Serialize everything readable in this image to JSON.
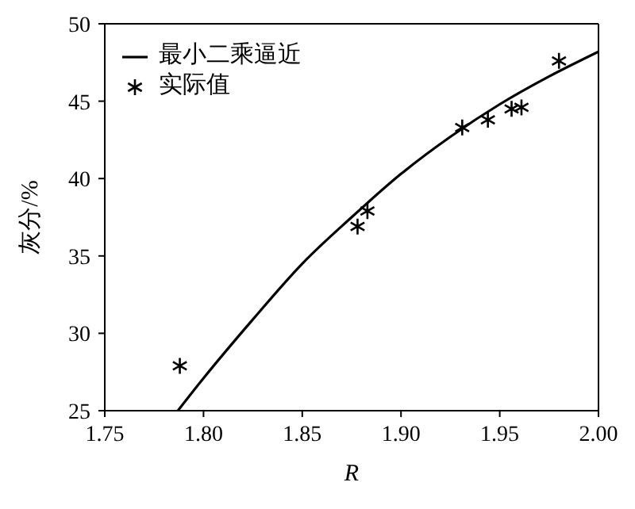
{
  "chart_data": {
    "type": "line",
    "xlabel": "R",
    "ylabel": "灰分/%",
    "xlim": [
      1.75,
      2.0
    ],
    "ylim": [
      25,
      50
    ],
    "xticks": [
      {
        "value": 1.75,
        "label": "1.75"
      },
      {
        "value": 1.8,
        "label": "1.80"
      },
      {
        "value": 1.85,
        "label": "1.85"
      },
      {
        "value": 1.9,
        "label": "1.90"
      },
      {
        "value": 1.95,
        "label": "1.95"
      },
      {
        "value": 2.0,
        "label": "2.00"
      }
    ],
    "yticks": [
      25,
      30,
      35,
      40,
      45,
      50
    ],
    "grid": false,
    "legend": "top left",
    "series": [
      {
        "name": "最小二乘逼近",
        "color": "#000000",
        "marker": "none",
        "x": [
          1.787,
          1.8,
          1.825,
          1.85,
          1.875,
          1.9,
          1.925,
          1.95,
          1.975,
          2.0
        ],
        "values": [
          25,
          27.1,
          30.9,
          34.5,
          37.5,
          40.3,
          42.7,
          44.8,
          46.6,
          48.2
        ]
      },
      {
        "name": "实际值",
        "type": "scatter",
        "color": "#000000",
        "marker": "cross",
        "x": [
          1.788,
          1.878,
          1.883,
          1.931,
          1.944,
          1.956,
          1.961,
          1.98
        ],
        "values": [
          27.9,
          36.9,
          37.9,
          43.3,
          43.8,
          44.5,
          44.6,
          47.6
        ]
      }
    ]
  }
}
